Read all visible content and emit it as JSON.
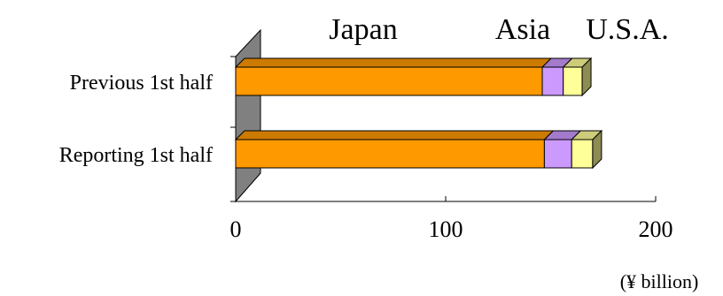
{
  "chart_data": {
    "type": "bar",
    "orientation": "horizontal",
    "stacked": true,
    "three_d": true,
    "categories": [
      "Previous 1st half",
      "Reporting 1st half"
    ],
    "series": [
      {
        "name": "Japan",
        "color": "#ff9900",
        "values": [
          146,
          147
        ]
      },
      {
        "name": "Asia",
        "color": "#cc99ff",
        "values": [
          10,
          13
        ]
      },
      {
        "name": "U.S.A.",
        "color": "#ffff99",
        "values": [
          9,
          10
        ]
      }
    ],
    "x_ticks": [
      "0",
      "100",
      "200"
    ],
    "xlim": [
      0,
      200
    ],
    "unit": "(¥ billion)",
    "legend_position": "top",
    "grid": false
  }
}
